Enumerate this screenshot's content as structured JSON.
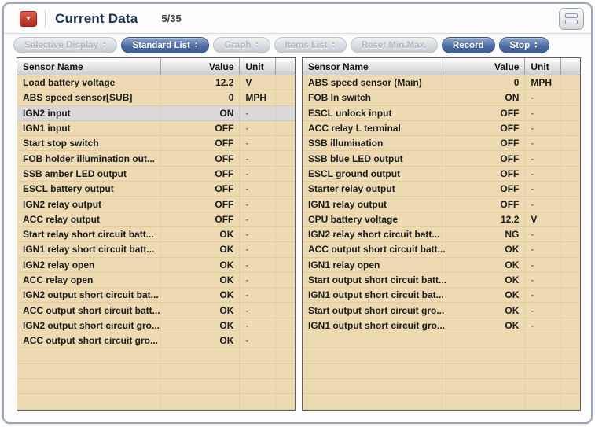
{
  "window": {
    "title": "Current Data",
    "counter": "5/35"
  },
  "toolbar": {
    "buttons": [
      {
        "label": "Selective Display",
        "state": "disabled",
        "arrows": true
      },
      {
        "label": "Standard List",
        "state": "active",
        "arrows": true
      },
      {
        "label": "Graph",
        "state": "disabled",
        "arrows": true
      },
      {
        "label": "Items List",
        "state": "disabled",
        "arrows": true
      },
      {
        "label": "Reset Min.Max.",
        "state": "disabled",
        "arrows": false
      },
      {
        "label": "Record",
        "state": "active",
        "arrows": false
      },
      {
        "label": "Stop",
        "state": "active",
        "arrows": true
      }
    ]
  },
  "tables": {
    "headers": {
      "name": "Sensor Name",
      "value": "Value",
      "unit": "Unit"
    }
  },
  "left_table": {
    "rows": [
      {
        "name": "Load battery voltage",
        "value": "12.2",
        "unit": "V"
      },
      {
        "name": "ABS speed sensor[SUB]",
        "value": "0",
        "unit": "MPH"
      },
      {
        "name": "IGN2 input",
        "value": "ON",
        "unit": "-",
        "highlighted": true
      },
      {
        "name": "IGN1 input",
        "value": "OFF",
        "unit": "-"
      },
      {
        "name": "Start stop switch",
        "value": "OFF",
        "unit": "-"
      },
      {
        "name": "FOB holder illumination out...",
        "value": "OFF",
        "unit": "-"
      },
      {
        "name": "SSB amber LED output",
        "value": "OFF",
        "unit": "-"
      },
      {
        "name": "ESCL battery output",
        "value": "OFF",
        "unit": "-"
      },
      {
        "name": "IGN2 relay output",
        "value": "OFF",
        "unit": "-"
      },
      {
        "name": "ACC relay output",
        "value": "OFF",
        "unit": "-"
      },
      {
        "name": "Start relay short circuit batt...",
        "value": "OK",
        "unit": "-"
      },
      {
        "name": "IGN1 relay short circuit batt...",
        "value": "OK",
        "unit": "-"
      },
      {
        "name": "IGN2 relay open",
        "value": "OK",
        "unit": "-"
      },
      {
        "name": "ACC relay open",
        "value": "OK",
        "unit": "-"
      },
      {
        "name": "IGN2 output short circuit bat...",
        "value": "OK",
        "unit": "-"
      },
      {
        "name": "ACC output short circuit batt...",
        "value": "OK",
        "unit": "-"
      },
      {
        "name": "IGN2 output short circuit gro...",
        "value": "OK",
        "unit": "-"
      },
      {
        "name": "ACC output short circuit gro...",
        "value": "OK",
        "unit": "-"
      }
    ]
  },
  "right_table": {
    "rows": [
      {
        "name": "ABS speed sensor (Main)",
        "value": "0",
        "unit": "MPH"
      },
      {
        "name": "FOB In switch",
        "value": "ON",
        "unit": "-"
      },
      {
        "name": "ESCL unlock input",
        "value": "OFF",
        "unit": "-"
      },
      {
        "name": "ACC relay L terminal",
        "value": "OFF",
        "unit": "-"
      },
      {
        "name": "SSB illumination",
        "value": "OFF",
        "unit": "-"
      },
      {
        "name": "SSB blue LED output",
        "value": "OFF",
        "unit": "-"
      },
      {
        "name": "ESCL ground output",
        "value": "OFF",
        "unit": "-"
      },
      {
        "name": "Starter relay output",
        "value": "OFF",
        "unit": "-"
      },
      {
        "name": "IGN1 relay output",
        "value": "OFF",
        "unit": "-"
      },
      {
        "name": "CPU battery voltage",
        "value": "12.2",
        "unit": "V"
      },
      {
        "name": "IGN2 relay short circuit batt...",
        "value": "NG",
        "unit": "-"
      },
      {
        "name": "ACC output short circuit batt...",
        "value": "OK",
        "unit": "-"
      },
      {
        "name": "IGN1 relay open",
        "value": "OK",
        "unit": "-"
      },
      {
        "name": "Start output short circuit batt...",
        "value": "OK",
        "unit": "-"
      },
      {
        "name": "IGN1 output short circuit bat...",
        "value": "OK",
        "unit": "-"
      },
      {
        "name": "Start output short circuit gro...",
        "value": "OK",
        "unit": "-"
      },
      {
        "name": "IGN1 output short circuit gro...",
        "value": "OK",
        "unit": "-"
      }
    ]
  },
  "colors": {
    "accent_blue": "#46659c",
    "row_tan": "#eedab2",
    "highlight_gray": "#d9d9d9",
    "title_navy": "#1d3054",
    "record_icon_red": "#b02a1c"
  }
}
